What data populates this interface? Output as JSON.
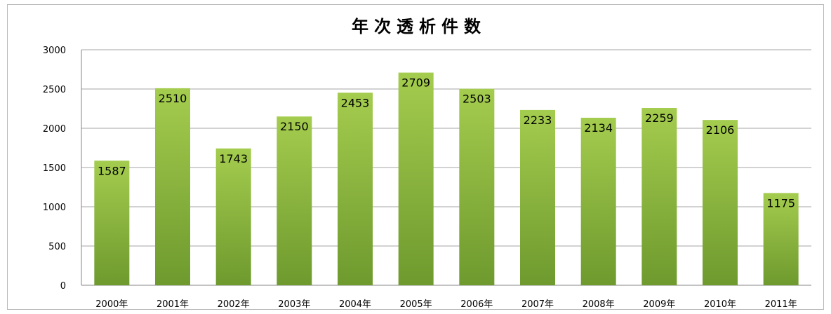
{
  "chart_data": {
    "type": "bar",
    "title": "年次透析件数",
    "categories": [
      "2000年",
      "2001年",
      "2002年",
      "2003年",
      "2004年",
      "2005年",
      "2006年",
      "2007年",
      "2008年",
      "2009年",
      "2010年",
      "2011年"
    ],
    "series": [
      {
        "values": [
          1587,
          2510,
          1743,
          2150,
          2453,
          2709,
          2503,
          2233,
          2134,
          2259,
          2106,
          1175
        ]
      }
    ],
    "xlabel": "",
    "ylabel": "",
    "ylim": [
      0,
      3000
    ],
    "yticks": [
      0,
      500,
      1000,
      1500,
      2000,
      2500,
      3000
    ],
    "grid": true,
    "legend": "none",
    "colors": {
      "bar_top": "#a4cc4e",
      "bar_bottom": "#6e9a2e",
      "grid": "#a6a6a6",
      "axis": "#868686"
    }
  }
}
